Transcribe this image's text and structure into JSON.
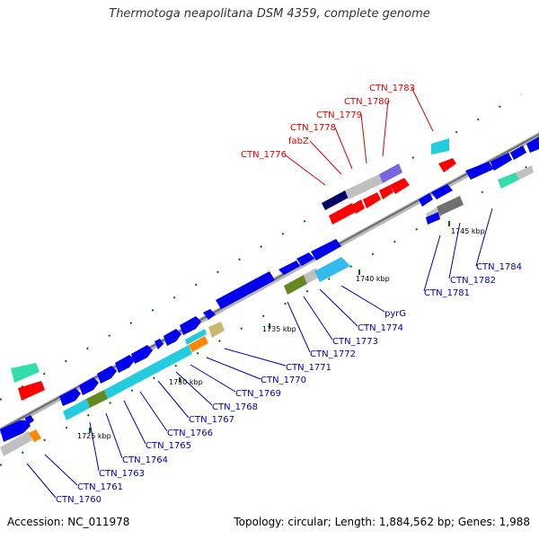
{
  "title": "Thermotoga neapolitana DSM 4359, complete genome",
  "accession": "Accession: NC_011978",
  "summary": "Topology: circular; Length: 1,884,562 bp; Genes: 1,988",
  "colors": {
    "backbone": "#808080",
    "highlight_label": "#dd0000",
    "normal_label": "#0000aa",
    "tick": "#006600",
    "gene_blue": "#0000ee",
    "gene_red": "#ff0000",
    "gene_cyan": "#22ccdd",
    "gene_grey": "#c0c0c0",
    "gene_darkgrey": "#707070",
    "gene_navy": "#000066",
    "gene_purple": "#7766dd",
    "gene_olive": "#668822",
    "gene_orange": "#ff8800",
    "gene_khaki": "#c8b870",
    "gene_skyblue": "#33bbee",
    "gene_green": "#33ddaa"
  },
  "scale_labels": [
    "1725 kbp",
    "1730 kbp",
    "1735 kbp",
    "1740 kbp",
    "1745 kbp"
  ],
  "gene_labels": [
    {
      "text": "CTN_1776",
      "highlight": true
    },
    {
      "text": "fabZ",
      "highlight": true
    },
    {
      "text": "CTN_1778",
      "highlight": true
    },
    {
      "text": "CTN_1779",
      "highlight": true
    },
    {
      "text": "CTN_1780",
      "highlight": true
    },
    {
      "text": "CTN_1783",
      "highlight": true
    },
    {
      "text": "CTN_1784",
      "highlight": false
    },
    {
      "text": "CTN_1782",
      "highlight": false
    },
    {
      "text": "CTN_1781",
      "highlight": false
    },
    {
      "text": "pyrG",
      "highlight": false
    },
    {
      "text": "CTN_1774",
      "highlight": false
    },
    {
      "text": "CTN_1773",
      "highlight": false
    },
    {
      "text": "CTN_1772",
      "highlight": false
    },
    {
      "text": "CTN_1771",
      "highlight": false
    },
    {
      "text": "CTN_1770",
      "highlight": false
    },
    {
      "text": "CTN_1769",
      "highlight": false
    },
    {
      "text": "CTN_1768",
      "highlight": false
    },
    {
      "text": "CTN_1767",
      "highlight": false
    },
    {
      "text": "CTN_1766",
      "highlight": false
    },
    {
      "text": "CTN_1765",
      "highlight": false
    },
    {
      "text": "CTN_1764",
      "highlight": false
    },
    {
      "text": "CTN_1763",
      "highlight": false
    },
    {
      "text": "CTN_1761",
      "highlight": false
    },
    {
      "text": "CTN_1760",
      "highlight": false
    }
  ]
}
